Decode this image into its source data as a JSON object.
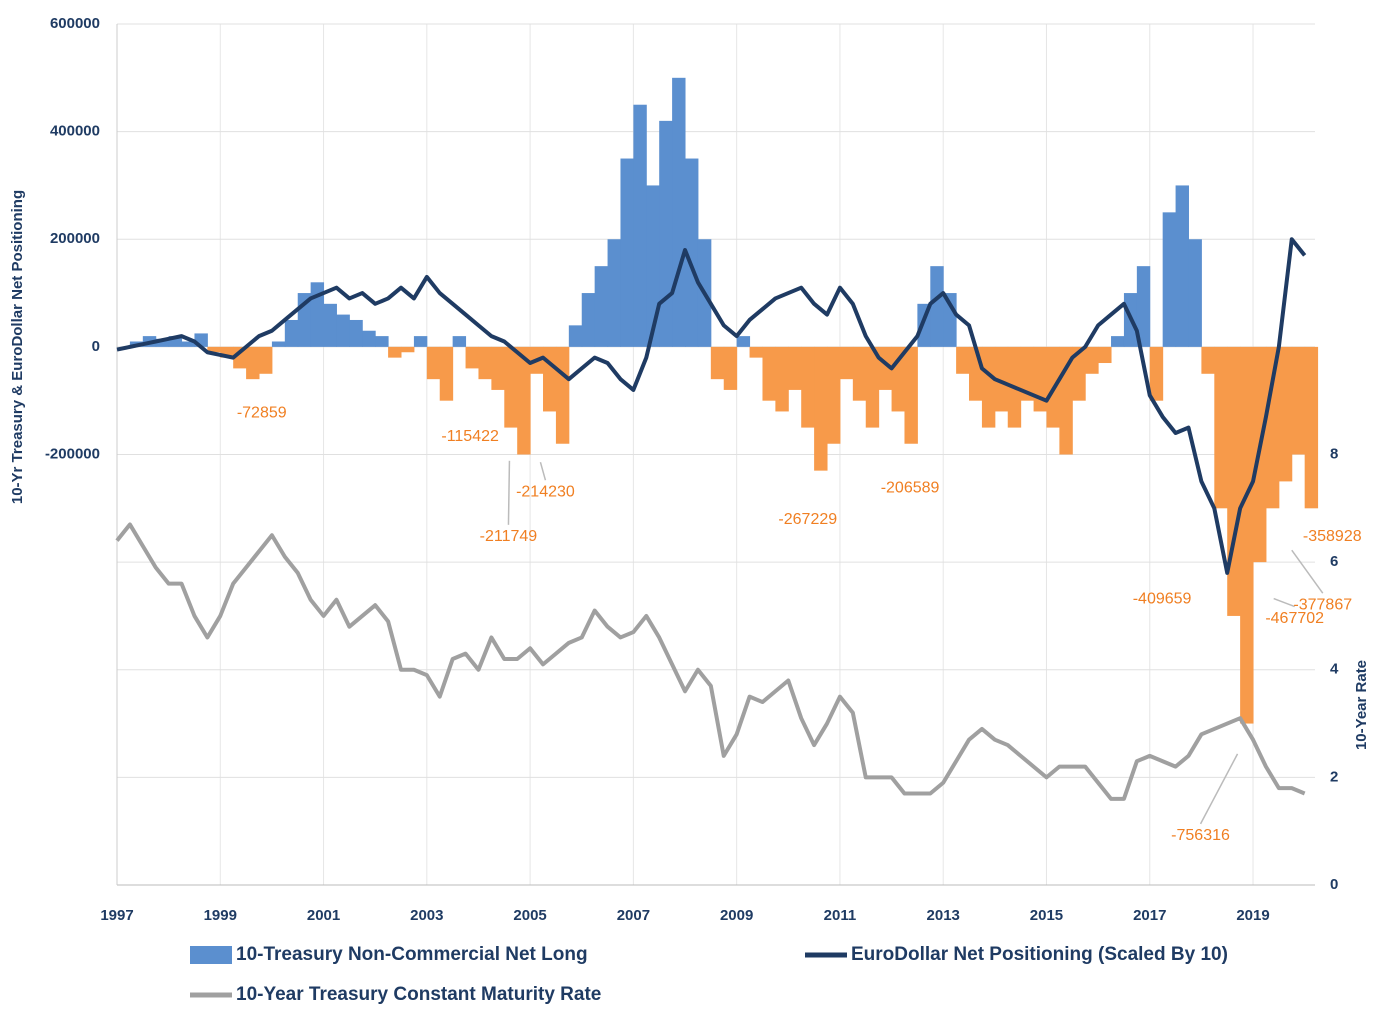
{
  "chart_data": {
    "type": "bar_line",
    "ylabel": "10-Yr Treasury & EuroDollar Net Positioning",
    "y2label": "10-Year Rate",
    "x": [
      1997,
      1997.25,
      1997.5,
      1997.75,
      1998,
      1998.25,
      1998.5,
      1998.75,
      1999,
      1999.25,
      1999.5,
      1999.75,
      2000,
      2000.25,
      2000.5,
      2000.75,
      2001,
      2001.25,
      2001.5,
      2001.75,
      2002,
      2002.25,
      2002.5,
      2002.75,
      2003,
      2003.25,
      2003.5,
      2003.75,
      2004,
      2004.25,
      2004.5,
      2004.75,
      2005,
      2005.25,
      2005.5,
      2005.75,
      2006,
      2006.25,
      2006.5,
      2006.75,
      2007,
      2007.25,
      2007.5,
      2007.75,
      2008,
      2008.25,
      2008.5,
      2008.75,
      2009,
      2009.25,
      2009.5,
      2009.75,
      2010,
      2010.25,
      2010.5,
      2010.75,
      2011,
      2011.25,
      2011.5,
      2011.75,
      2012,
      2012.25,
      2012.5,
      2012.75,
      2013,
      2013.25,
      2013.5,
      2013.75,
      2014,
      2014.25,
      2014.5,
      2014.75,
      2015,
      2015.25,
      2015.5,
      2015.75,
      2016,
      2016.25,
      2016.5,
      2016.75,
      2017,
      2017.25,
      2017.5,
      2017.75,
      2018,
      2018.25,
      2018.5,
      2018.75,
      2019,
      2019.25,
      2019.5,
      2019.75,
      2020
    ],
    "series": [
      {
        "name": "10-Treasury Non-Commercial Net Long",
        "kind": "bar",
        "color": "#5b8fcf",
        "negative_color": "#f79a4a",
        "values": [
          0,
          10000,
          20000,
          15000,
          20000,
          10000,
          25000,
          -10000,
          -20000,
          -40000,
          -60000,
          -50000,
          10000,
          50000,
          100000,
          120000,
          80000,
          60000,
          50000,
          30000,
          20000,
          -20000,
          -10000,
          20000,
          -60000,
          -100000,
          20000,
          -40000,
          -60000,
          -80000,
          -150000,
          -200000,
          -50000,
          -120000,
          -180000,
          40000,
          100000,
          150000,
          200000,
          350000,
          450000,
          300000,
          420000,
          500000,
          350000,
          200000,
          -60000,
          -80000,
          20000,
          -20000,
          -100000,
          -120000,
          -80000,
          -150000,
          -230000,
          -180000,
          -60000,
          -100000,
          -150000,
          -80000,
          -120000,
          -180000,
          80000,
          150000,
          100000,
          -50000,
          -100000,
          -150000,
          -120000,
          -150000,
          -100000,
          -120000,
          -150000,
          -200000,
          -100000,
          -50000,
          -30000,
          20000,
          100000,
          150000,
          -100000,
          250000,
          300000,
          200000,
          -50000,
          -300000,
          -500000,
          -700000,
          -400000,
          -300000,
          -250000,
          -200000,
          -300000
        ]
      },
      {
        "name": "EuroDollar Net Positioning (Scaled By 10)",
        "kind": "line",
        "color": "#1f3b63",
        "values": [
          -5000,
          0,
          5000,
          10000,
          15000,
          20000,
          10000,
          -10000,
          -15000,
          -20000,
          0,
          20000,
          30000,
          50000,
          70000,
          90000,
          100000,
          110000,
          90000,
          100000,
          80000,
          90000,
          110000,
          90000,
          130000,
          100000,
          80000,
          60000,
          40000,
          20000,
          10000,
          -10000,
          -30000,
          -20000,
          -40000,
          -60000,
          -40000,
          -20000,
          -30000,
          -60000,
          -80000,
          -20000,
          80000,
          100000,
          180000,
          120000,
          80000,
          40000,
          20000,
          50000,
          70000,
          90000,
          100000,
          110000,
          80000,
          60000,
          110000,
          80000,
          20000,
          -20000,
          -40000,
          -10000,
          20000,
          80000,
          100000,
          60000,
          40000,
          -40000,
          -60000,
          -70000,
          -80000,
          -90000,
          -100000,
          -60000,
          -20000,
          0,
          40000,
          60000,
          80000,
          30000,
          -90000,
          -130000,
          -160000,
          -150000,
          -250000,
          -300000,
          -420000,
          -300000,
          -250000,
          -130000,
          0,
          200000,
          170000
        ]
      },
      {
        "name": "10-Year Treasury Constant Maturity Rate",
        "kind": "line",
        "axis": "y2",
        "color": "#a0a0a0",
        "values": [
          6.4,
          6.7,
          6.3,
          5.9,
          5.6,
          5.6,
          5.0,
          4.6,
          5.0,
          5.6,
          5.9,
          6.2,
          6.5,
          6.1,
          5.8,
          5.3,
          5.0,
          5.3,
          4.8,
          5.0,
          5.2,
          4.9,
          4.0,
          4.0,
          3.9,
          3.5,
          4.2,
          4.3,
          4.0,
          4.6,
          4.2,
          4.2,
          4.4,
          4.1,
          4.3,
          4.5,
          4.6,
          5.1,
          4.8,
          4.6,
          4.7,
          5.0,
          4.6,
          4.1,
          3.6,
          4.0,
          3.7,
          2.4,
          2.8,
          3.5,
          3.4,
          3.6,
          3.8,
          3.1,
          2.6,
          3.0,
          3.5,
          3.2,
          2.0,
          2.0,
          2.0,
          1.7,
          1.7,
          1.7,
          1.9,
          2.3,
          2.7,
          2.9,
          2.7,
          2.6,
          2.4,
          2.2,
          2.0,
          2.2,
          2.2,
          2.2,
          1.9,
          1.6,
          1.6,
          2.3,
          2.4,
          2.3,
          2.2,
          2.4,
          2.8,
          2.9,
          3.0,
          3.1,
          2.7,
          2.2,
          1.8,
          1.8,
          1.7
        ]
      }
    ],
    "annotations": [
      {
        "x": 1999.9,
        "value": -72859
      },
      {
        "x": 2003.8,
        "value": -115422
      },
      {
        "x": 2005.2,
        "value": -214230
      },
      {
        "x": 2004.6,
        "value": -211749
      },
      {
        "x": 2010.3,
        "value": -267229
      },
      {
        "x": 2012.3,
        "value": -206589
      },
      {
        "x": 2017.2,
        "value": -409659
      },
      {
        "x": 2018.7,
        "value": -756316
      },
      {
        "x": 2019.4,
        "value": -467702
      },
      {
        "x": 2019.75,
        "value": -377867
      },
      {
        "x": 2020.05,
        "value": -358928
      }
    ],
    "xlim": [
      1997,
      2020.2
    ],
    "xticks": [
      1997,
      1999,
      2001,
      2003,
      2005,
      2007,
      2009,
      2011,
      2013,
      2015,
      2017,
      2019
    ],
    "ylim": [
      -1000000,
      600000
    ],
    "yticks": [
      -200000,
      0,
      200000,
      400000,
      600000
    ],
    "y2lim": [
      0,
      16
    ],
    "y2ticks": [
      0,
      2,
      4,
      6,
      8
    ],
    "grid": true
  }
}
